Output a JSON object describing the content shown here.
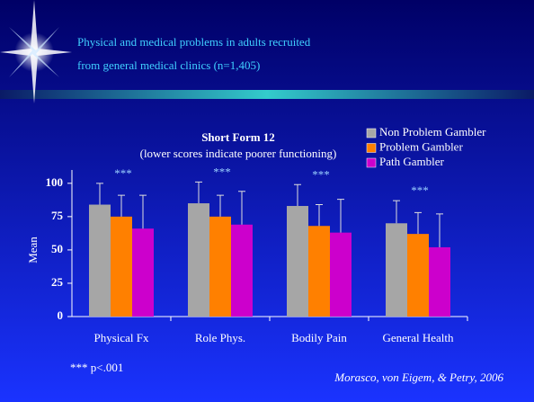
{
  "slide_title": [
    "Physical and medical problems in adults recruited",
    "from general medical clinics (n=1,405)"
  ],
  "chart_data": {
    "type": "bar",
    "title": "Short Form 12",
    "subtitle": "(lower scores indicate poorer  functioning)",
    "y_label": "Mean",
    "categories": [
      "Physical Fx",
      "Role Phys.",
      "Bodily Pain",
      "General Health"
    ],
    "series": [
      {
        "name": "Non Problem Gambler",
        "color": "#a6a6a6",
        "values": [
          84,
          85,
          83,
          70
        ],
        "errors": [
          16,
          16,
          16,
          17
        ]
      },
      {
        "name": "Problem Gambler",
        "color": "#ff8000",
        "values": [
          75,
          75,
          68,
          62
        ],
        "errors": [
          16,
          16,
          16,
          16
        ]
      },
      {
        "name": "Path Gambler",
        "color": "#cc00cc",
        "values": [
          66,
          69,
          63,
          52
        ],
        "errors": [
          25,
          25,
          25,
          25
        ]
      }
    ],
    "annotations": [
      "***",
      "***",
      "***",
      "***"
    ],
    "ylim": [
      0,
      110
    ],
    "yticks": [
      0,
      25,
      50,
      75,
      100
    ],
    "legend": "upper right"
  },
  "footnote": "*** p<.001",
  "citation": "Morasco, von Eigem, & Petry, 2006"
}
